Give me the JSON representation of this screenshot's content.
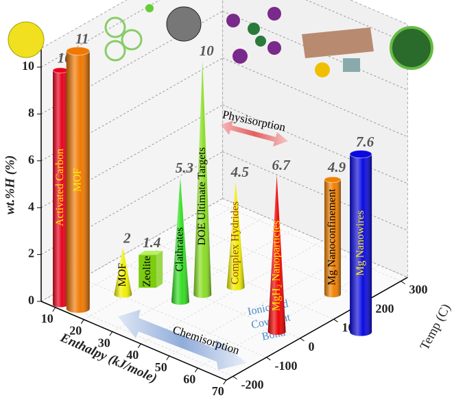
{
  "chart_data": {
    "type": "bar3d",
    "categories": [
      "Activated Carbon",
      "MOF",
      "MOF",
      "Zeolite",
      "Clathrates",
      "DOE Ultimate Targets",
      "Complex Hydrides",
      "MgH₂ Nanoparticles",
      "Mg Nanoconfinement",
      "Mg Nanowires"
    ],
    "values": [
      10,
      11,
      2,
      1.4,
      5.3,
      10,
      4.5,
      6.7,
      4.9,
      7.6
    ],
    "enthalpy": [
      10,
      15,
      19,
      21.5,
      33,
      35,
      39,
      63,
      61,
      80
    ],
    "temp": [
      -205,
      -195,
      -95,
      -43,
      -43,
      6,
      71,
      -10,
      173,
      96
    ],
    "shapes": [
      "cylinder",
      "cylinder",
      "cone",
      "box",
      "cone",
      "cone",
      "cone",
      "cone",
      "cylinder",
      "cylinder"
    ],
    "colors": [
      "#e8001c",
      "#f07800",
      "#f0f000",
      "#7ccc10",
      "#33dd22",
      "#88dd22",
      "#eeee00",
      "#ee0000",
      "#f08000",
      "#0a0ae0"
    ],
    "label_colors": [
      "#ffee00",
      "#ffee00",
      "#000000",
      "#000000",
      "#000000",
      "#000000",
      "#a04000",
      "#ffee00",
      "#000000",
      "#ffee00"
    ],
    "ylabel": "wt.%H (%)",
    "xlabel": "Enthalpy (kJ/mole)",
    "zlabel": "Temp (C)",
    "ylim": [
      0,
      10
    ],
    "yticks": [
      0,
      2,
      4,
      6,
      8,
      10
    ],
    "xlim": [
      5,
      70
    ],
    "xticks": [
      10,
      20,
      30,
      40,
      50,
      60,
      70
    ],
    "zlim": [
      -220,
      320
    ],
    "zticks": [
      -200,
      -100,
      0,
      100,
      200,
      300
    ],
    "annotations": {
      "physisorption": "Physisorption",
      "chemisorption": "Chemisorption",
      "bond": [
        "Ionic and",
        "Covalent",
        "Bond"
      ]
    },
    "grid": true
  }
}
